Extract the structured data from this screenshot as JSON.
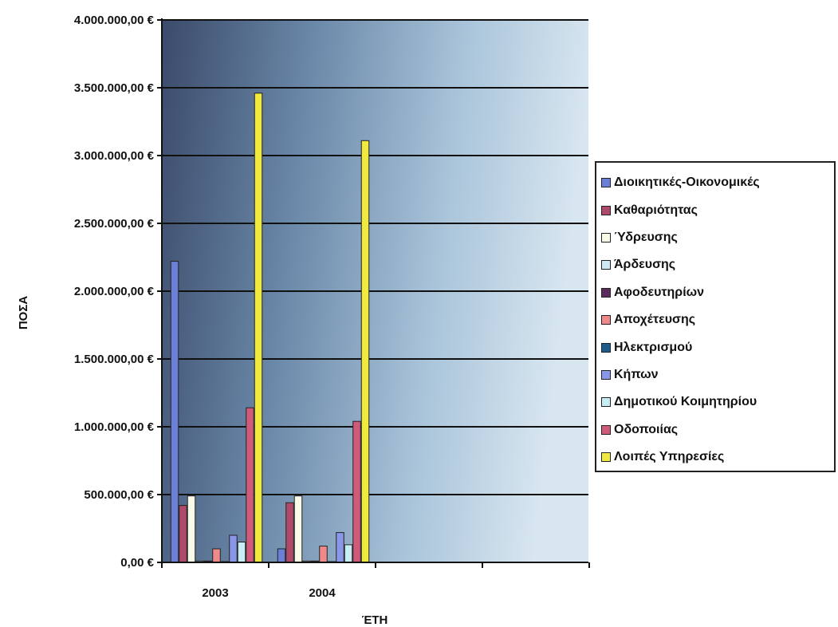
{
  "chart_data": {
    "type": "bar",
    "title": "",
    "xlabel": "ΈΤΗ",
    "ylabel": "ΠΟΣΑ",
    "categories": [
      "2003",
      "2004"
    ],
    "ylim": [
      0,
      4000000
    ],
    "yticks": [
      0,
      500000,
      1000000,
      1500000,
      2000000,
      2500000,
      3000000,
      3500000,
      4000000
    ],
    "ytick_labels": [
      "0,00 €",
      "500.000,00 €",
      "1.000.000,00 €",
      "1.500.000,00 €",
      "2.000.000,00 €",
      "2.500.000,00 €",
      "3.000.000,00 €",
      "3.500.000,00 €",
      "4.000.000,00 €"
    ],
    "grid": true,
    "legend_position": "right",
    "series": [
      {
        "name": "Διοικητικές-Οικονομικές",
        "color": "#6b7fd7",
        "values": [
          2220000,
          100000
        ]
      },
      {
        "name": "Καθαριότητας",
        "color": "#b04a6a",
        "values": [
          420000,
          440000
        ]
      },
      {
        "name": "Ύδρευσης",
        "color": "#fafae8",
        "values": [
          490000,
          490000
        ]
      },
      {
        "name": "Άρδευσης",
        "color": "#cfe8f5",
        "values": [
          10000,
          10000
        ]
      },
      {
        "name": "Αφοδευτηρίων",
        "color": "#5a2a5a",
        "values": [
          10000,
          10000
        ]
      },
      {
        "name": "Αποχέτευσης",
        "color": "#f08a8a",
        "values": [
          100000,
          120000
        ]
      },
      {
        "name": "Ηλεκτρισμού",
        "color": "#1e5a8a",
        "values": [
          5000,
          5000
        ]
      },
      {
        "name": "Κήπων",
        "color": "#8a96e8",
        "values": [
          200000,
          220000
        ]
      },
      {
        "name": "Δημοτικού Κοιμητηρίου",
        "color": "#c8eef5",
        "values": [
          150000,
          130000
        ]
      },
      {
        "name": "Οδοποιίας",
        "color": "#d05a7a",
        "values": [
          1140000,
          1040000
        ]
      },
      {
        "name": "Λοιπές Υπηρεσίες",
        "color": "#f0ea40",
        "values": [
          3460000,
          3110000
        ]
      }
    ]
  }
}
